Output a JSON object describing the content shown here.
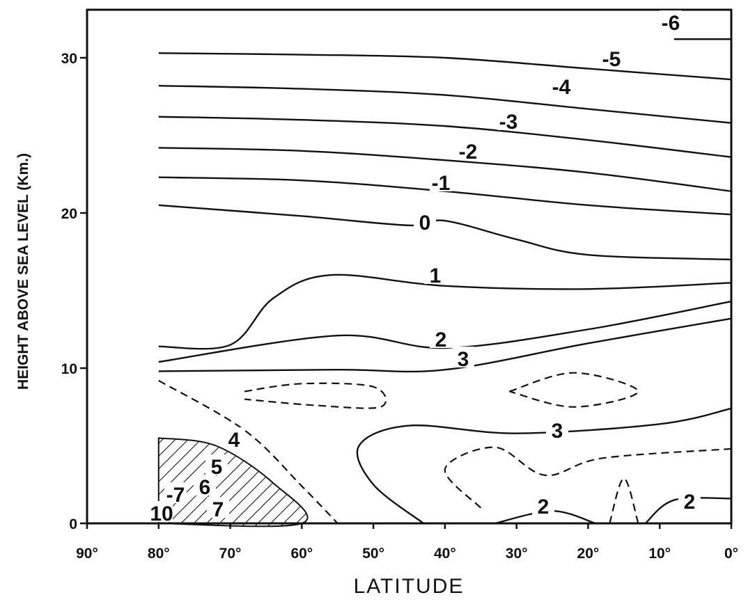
{
  "chart_data": {
    "type": "contour",
    "xlabel": "LATITUDE",
    "ylabel": "HEIGHT ABOVE SEA LEVEL (Km.)",
    "x_ticks": [
      {
        "value": 90,
        "label": "90°"
      },
      {
        "value": 80,
        "label": "80°"
      },
      {
        "value": 70,
        "label": "70°"
      },
      {
        "value": 60,
        "label": "60°"
      },
      {
        "value": 50,
        "label": "50°"
      },
      {
        "value": 40,
        "label": "40°"
      },
      {
        "value": 30,
        "label": "30°"
      },
      {
        "value": 20,
        "label": "20°"
      },
      {
        "value": 10,
        "label": "10°"
      },
      {
        "value": 0,
        "label": "0°"
      }
    ],
    "y_ticks": [
      {
        "value": 0,
        "label": "0"
      },
      {
        "value": 10,
        "label": "10"
      },
      {
        "value": 20,
        "label": "20"
      },
      {
        "value": 30,
        "label": "30"
      }
    ],
    "xlim": [
      90,
      0
    ],
    "ylim": [
      0,
      32
    ],
    "grid": false,
    "contours": [
      {
        "label": "-6",
        "style": "solid",
        "points": [
          [
            8,
            31.2
          ],
          [
            0,
            31.2
          ]
        ]
      },
      {
        "label": "-5",
        "style": "solid",
        "points": [
          [
            80,
            30.3
          ],
          [
            60,
            30.2
          ],
          [
            40,
            30.0
          ],
          [
            20,
            29.3
          ],
          [
            0,
            28.6
          ]
        ]
      },
      {
        "label": "-4",
        "style": "solid",
        "points": [
          [
            80,
            28.2
          ],
          [
            60,
            28.0
          ],
          [
            40,
            27.6
          ],
          [
            20,
            26.7
          ],
          [
            0,
            25.8
          ]
        ]
      },
      {
        "label": "-3",
        "style": "solid",
        "points": [
          [
            80,
            26.2
          ],
          [
            60,
            26.0
          ],
          [
            40,
            25.6
          ],
          [
            20,
            24.7
          ],
          [
            0,
            23.6
          ]
        ]
      },
      {
        "label": "-2",
        "style": "solid",
        "points": [
          [
            80,
            24.2
          ],
          [
            60,
            24.0
          ],
          [
            40,
            23.4
          ],
          [
            20,
            22.6
          ],
          [
            0,
            21.4
          ]
        ]
      },
      {
        "label": "-1",
        "style": "solid",
        "points": [
          [
            80,
            22.3
          ],
          [
            60,
            22.1
          ],
          [
            40,
            21.4
          ],
          [
            20,
            20.5
          ],
          [
            0,
            19.9
          ]
        ]
      },
      {
        "label": "0",
        "style": "solid",
        "points": [
          [
            80,
            20.5
          ],
          [
            60,
            19.8
          ],
          [
            45,
            19.2
          ],
          [
            40,
            19.5
          ],
          [
            30,
            18.3
          ],
          [
            20,
            17.3
          ],
          [
            0,
            17.0
          ]
        ]
      },
      {
        "label": "1",
        "style": "solid",
        "points": [
          [
            80,
            11.4
          ],
          [
            70,
            11.5
          ],
          [
            64,
            14.5
          ],
          [
            56,
            16.0
          ],
          [
            40,
            15.3
          ],
          [
            20,
            15.1
          ],
          [
            0,
            15.5
          ]
        ]
      },
      {
        "label": "2",
        "style": "solid",
        "points": [
          [
            80,
            10.4
          ],
          [
            55,
            12.1
          ],
          [
            40,
            11.3
          ],
          [
            20,
            12.5
          ],
          [
            0,
            14.3
          ]
        ]
      },
      {
        "label": "3",
        "style": "solid",
        "points": [
          [
            80,
            9.8
          ],
          [
            55,
            9.9
          ],
          [
            40,
            9.9
          ],
          [
            20,
            11.6
          ],
          [
            0,
            13.2
          ]
        ]
      },
      {
        "label": "3",
        "style": "solid",
        "points": [
          [
            43,
            0.0
          ],
          [
            50,
            2.5
          ],
          [
            52,
            5.0
          ],
          [
            45,
            6.3
          ],
          [
            30,
            5.8
          ],
          [
            10,
            6.4
          ],
          [
            0,
            7.4
          ]
        ]
      },
      {
        "label": "2",
        "style": "solid",
        "points": [
          [
            33,
            0.0
          ],
          [
            25,
            0.8
          ],
          [
            19,
            0.0
          ]
        ]
      },
      {
        "label": "2",
        "style": "solid",
        "points": [
          [
            12,
            0.0
          ],
          [
            8,
            1.5
          ],
          [
            0,
            1.6
          ]
        ]
      },
      {
        "label": "",
        "style": "dashed",
        "points": [
          [
            80,
            9.2
          ],
          [
            68,
            6.0
          ],
          [
            60,
            2.4
          ],
          [
            55,
            0.0
          ]
        ]
      },
      {
        "label": "",
        "style": "dashed",
        "points": [
          [
            68,
            8.5
          ],
          [
            60,
            9.0
          ],
          [
            50,
            8.8
          ],
          [
            49,
            7.5
          ],
          [
            58,
            7.6
          ],
          [
            68,
            8.0
          ]
        ]
      },
      {
        "label": "",
        "style": "dashed",
        "points": [
          [
            31,
            8.5
          ],
          [
            22,
            9.7
          ],
          [
            13,
            8.5
          ],
          [
            22,
            7.5
          ],
          [
            31,
            8.5
          ]
        ]
      },
      {
        "label": "",
        "style": "dashed",
        "points": [
          [
            35,
            1.0
          ],
          [
            40,
            3.5
          ],
          [
            33,
            4.9
          ],
          [
            26,
            3.1
          ],
          [
            18,
            4.2
          ],
          [
            0,
            4.8
          ]
        ]
      },
      {
        "label": "",
        "style": "dashed",
        "points": [
          [
            17,
            0.0
          ],
          [
            15,
            2.9
          ],
          [
            13,
            0.0
          ]
        ]
      }
    ],
    "hatched_region": {
      "description": "hatched area near 60-80° below ~5 km",
      "points": [
        [
          80,
          5.5
        ],
        [
          72,
          5.0
        ],
        [
          64,
          2.6
        ],
        [
          60,
          0.0
        ],
        [
          80,
          0.0
        ]
      ]
    },
    "inline_labels": [
      "-6",
      "-5",
      "-4",
      "-3",
      "-2",
      "-1",
      "0",
      "1",
      "2",
      "3",
      "3",
      "2",
      "2",
      "4",
      "5",
      "6",
      "-7",
      "7",
      "10"
    ]
  }
}
